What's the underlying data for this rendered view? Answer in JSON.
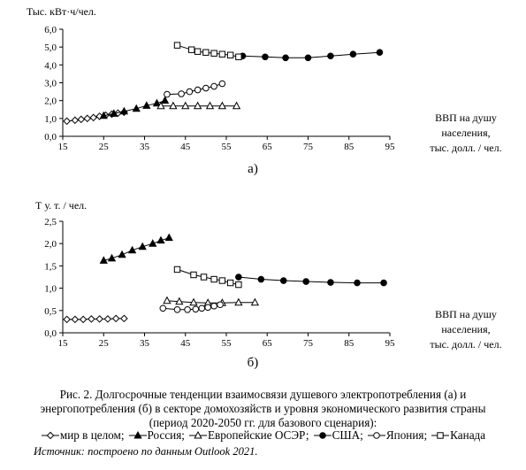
{
  "chart_data": [
    {
      "type": "line",
      "panel_label": "а)",
      "ylabel": "Тыс. кВт·ч/чел.",
      "xlabel_lines": [
        "ВВП на душу",
        "населения,",
        "тыс. долл. / чел."
      ],
      "xlim": [
        15,
        95
      ],
      "ylim": [
        0,
        6
      ],
      "xticks": [
        15,
        25,
        35,
        45,
        55,
        65,
        75,
        85,
        95
      ],
      "yticks": [
        "0,0",
        "1,0",
        "2,0",
        "3,0",
        "4,0",
        "5,0",
        "6,0"
      ],
      "series": [
        {
          "name": "мир в целом",
          "marker": "diamond-open",
          "x": [
            16,
            18,
            19.5,
            21,
            22.5,
            24,
            25.5,
            27,
            28.5,
            30
          ],
          "y": [
            0.85,
            0.9,
            0.95,
            1.0,
            1.05,
            1.12,
            1.18,
            1.24,
            1.3,
            1.35
          ]
        },
        {
          "name": "Россия",
          "marker": "triangle-filled",
          "x": [
            25,
            27.5,
            30,
            33,
            35.5,
            38,
            40
          ],
          "y": [
            1.15,
            1.27,
            1.4,
            1.55,
            1.72,
            1.85,
            2.0
          ]
        },
        {
          "name": "Европейские ОСЭР",
          "marker": "triangle-open",
          "x": [
            39,
            42,
            45,
            48,
            51,
            54,
            57.5
          ],
          "y": [
            1.7,
            1.7,
            1.7,
            1.7,
            1.7,
            1.7,
            1.7
          ]
        },
        {
          "name": "США",
          "marker": "circle-filled",
          "x": [
            59,
            64.5,
            69.5,
            75,
            80.5,
            86,
            92.5
          ],
          "y": [
            4.5,
            4.45,
            4.4,
            4.4,
            4.5,
            4.6,
            4.7
          ]
        },
        {
          "name": "Япония",
          "marker": "circle-open",
          "x": [
            40.5,
            44,
            46,
            48,
            50,
            52,
            54
          ],
          "y": [
            2.35,
            2.38,
            2.5,
            2.6,
            2.7,
            2.8,
            2.95
          ]
        },
        {
          "name": "Канада",
          "marker": "square-open",
          "x": [
            43,
            46.5,
            48,
            50,
            52,
            54,
            56,
            58
          ],
          "y": [
            5.1,
            4.85,
            4.75,
            4.7,
            4.65,
            4.6,
            4.55,
            4.45
          ]
        }
      ]
    },
    {
      "type": "line",
      "panel_label": "б)",
      "ylabel": "Т у. т. / чел.",
      "xlabel_lines": [
        "ВВП на душу",
        "населения,",
        "тыс. долл. / чел."
      ],
      "xlim": [
        15,
        95
      ],
      "ylim": [
        0,
        2.5
      ],
      "xticks": [
        15,
        25,
        35,
        45,
        55,
        65,
        75,
        85,
        95
      ],
      "yticks": [
        "0,0",
        "0,5",
        "1,0",
        "1,5",
        "2,0",
        "2,5"
      ],
      "series": [
        {
          "name": "мир в целом",
          "marker": "diamond-open",
          "x": [
            16,
            18,
            20,
            22,
            24,
            26,
            28,
            30
          ],
          "y": [
            0.3,
            0.3,
            0.3,
            0.31,
            0.31,
            0.31,
            0.32,
            0.32
          ]
        },
        {
          "name": "Россия",
          "marker": "triangle-filled",
          "x": [
            25,
            27,
            29.5,
            32,
            34.5,
            37,
            39,
            41
          ],
          "y": [
            1.62,
            1.67,
            1.75,
            1.85,
            1.93,
            2.0,
            2.07,
            2.13
          ]
        },
        {
          "name": "Европейские ОСЭР",
          "marker": "triangle-open",
          "x": [
            40.5,
            43.5,
            47,
            50.5,
            54,
            58,
            62
          ],
          "y": [
            0.72,
            0.7,
            0.68,
            0.67,
            0.67,
            0.68,
            0.68
          ]
        },
        {
          "name": "США",
          "marker": "circle-filled",
          "x": [
            58,
            63.5,
            69,
            74.5,
            80.5,
            87,
            93.5
          ],
          "y": [
            1.25,
            1.2,
            1.17,
            1.15,
            1.13,
            1.12,
            1.12
          ]
        },
        {
          "name": "Япония",
          "marker": "circle-open",
          "x": [
            39.5,
            43,
            45.5,
            47.5,
            49,
            50.5,
            52,
            53.5
          ],
          "y": [
            0.55,
            0.52,
            0.52,
            0.53,
            0.55,
            0.57,
            0.6,
            0.63
          ]
        },
        {
          "name": "Канада",
          "marker": "square-open",
          "x": [
            43,
            47,
            49.5,
            52,
            54,
            56,
            58
          ],
          "y": [
            1.42,
            1.3,
            1.25,
            1.2,
            1.17,
            1.12,
            1.08
          ]
        }
      ]
    }
  ],
  "caption": {
    "line1": "Рис. 2. Долгосрочные тенденции взаимосвязи душевого электропотребления (а) и",
    "line2": "энергопотребления (б) в секторе домохозяйств и уровня экономического развития страны",
    "line3": "(период 2020-2050 гг. для базового сценария):"
  },
  "legend": [
    {
      "marker": "diamond-open",
      "label": "мир в целом;"
    },
    {
      "marker": "triangle-filled",
      "label": "Россия;"
    },
    {
      "marker": "triangle-open",
      "label": "Европейские ОСЭР;"
    },
    {
      "marker": "circle-filled",
      "label": "США;"
    },
    {
      "marker": "circle-open",
      "label": "Япония;"
    },
    {
      "marker": "square-open",
      "label": "Канада"
    }
  ],
  "source": "Источник: построено по данным Outlook 2021."
}
